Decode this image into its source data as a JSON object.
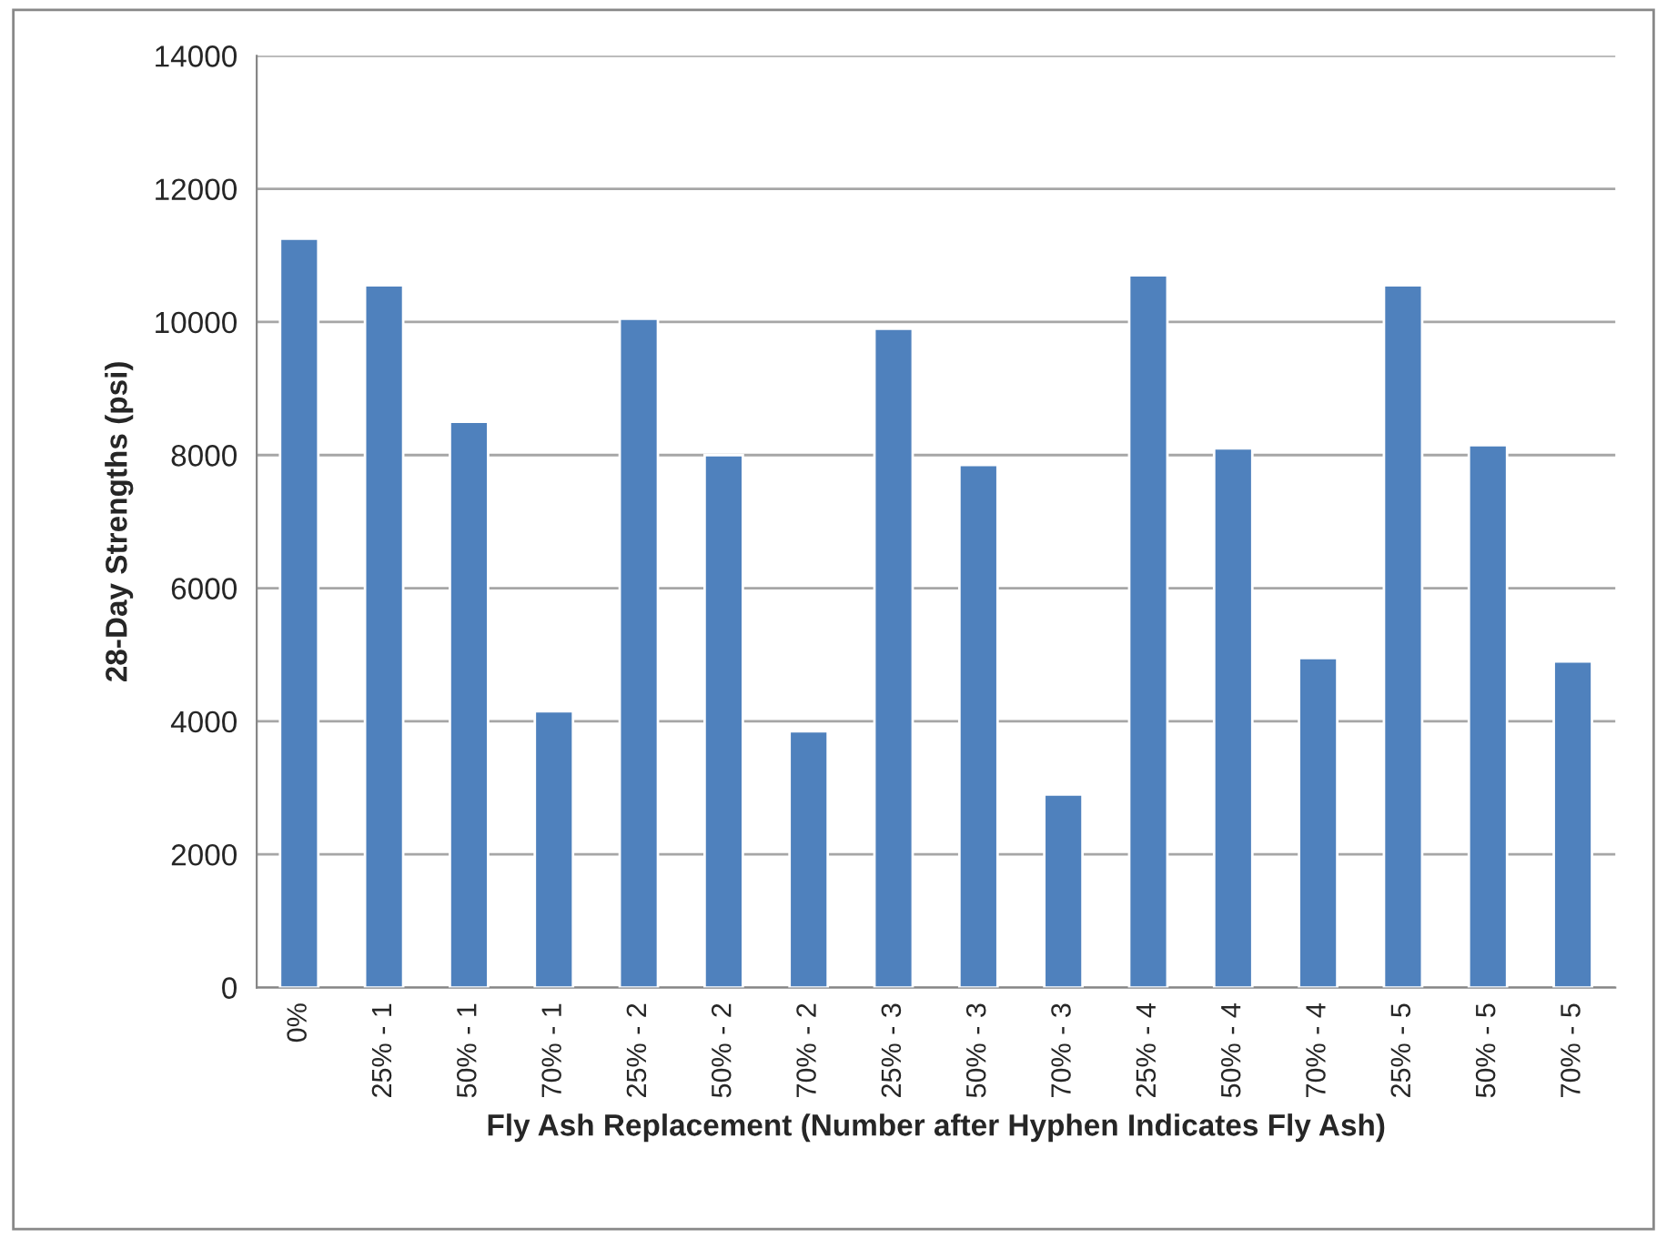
{
  "chart_data": {
    "type": "bar",
    "xlabel": "Fly Ash Replacement (Number after Hyphen Indicates Fly Ash)",
    "ylabel": "28-Day Strengths (psi)",
    "categories": [
      "0%",
      "25% - 1",
      "50% - 1",
      "70% - 1",
      "25% - 2",
      "50% - 2",
      "70% - 2",
      "25% - 3",
      "50% - 3",
      "70% - 3",
      "25% - 4",
      "50% - 4",
      "70% - 4",
      "25% - 5",
      "50% - 5",
      "70% - 5"
    ],
    "values": [
      11250,
      10550,
      8500,
      4150,
      10050,
      8000,
      3850,
      9900,
      7850,
      2900,
      10700,
      8100,
      4950,
      10550,
      8150,
      4900
    ],
    "color": "#4f81bd",
    "ylim": [
      0,
      14000
    ],
    "yticks": [
      0,
      2000,
      4000,
      6000,
      8000,
      10000,
      12000,
      14000
    ],
    "grid": "y"
  }
}
